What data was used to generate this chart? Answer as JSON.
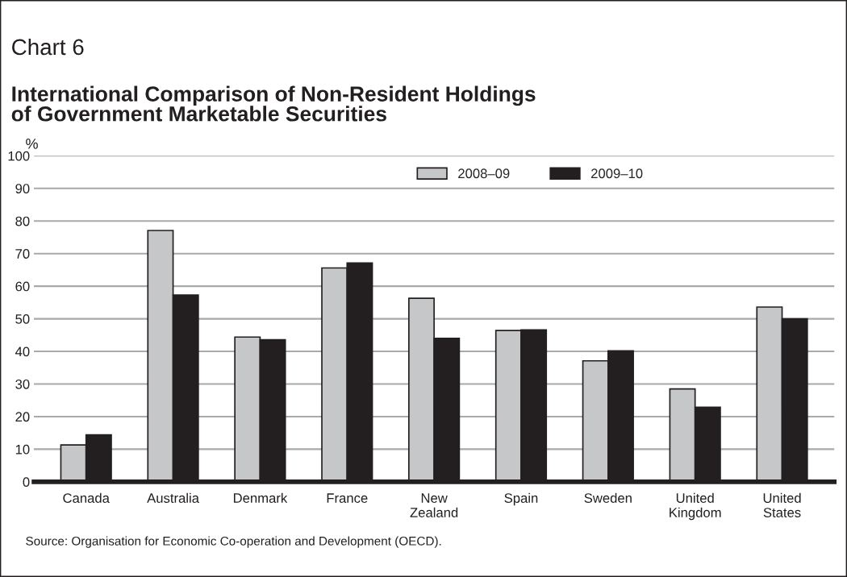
{
  "chart_data": {
    "type": "bar",
    "title": "Chart 6",
    "subtitle": "International Comparison of Non-Resident Holdings\nof Government Marketable Securities",
    "ylabel": "%",
    "categories": [
      "Canada",
      "Australia",
      "Denmark",
      "France",
      "New\nZealand",
      "Spain",
      "Sweden",
      "United\nKingdom",
      "United\nStates"
    ],
    "series": [
      {
        "name": "2008–09",
        "color": "#c6c7c9",
        "values": [
          11.3,
          77.1,
          44.4,
          65.6,
          56.3,
          46.4,
          37.1,
          28.5,
          53.6
        ]
      },
      {
        "name": "2009–10",
        "color": "#231f20",
        "values": [
          14.4,
          57.3,
          43.6,
          67.1,
          44.0,
          46.6,
          40.2,
          22.9,
          50.0
        ]
      }
    ],
    "ylim": [
      0,
      100
    ],
    "yticks": [
      0,
      10,
      20,
      30,
      40,
      50,
      60,
      70,
      80,
      90,
      100
    ],
    "grid": "y",
    "legend": "top",
    "annotations": [
      "Source: Organisation for Economic Co-operation and Development (OECD)."
    ]
  }
}
